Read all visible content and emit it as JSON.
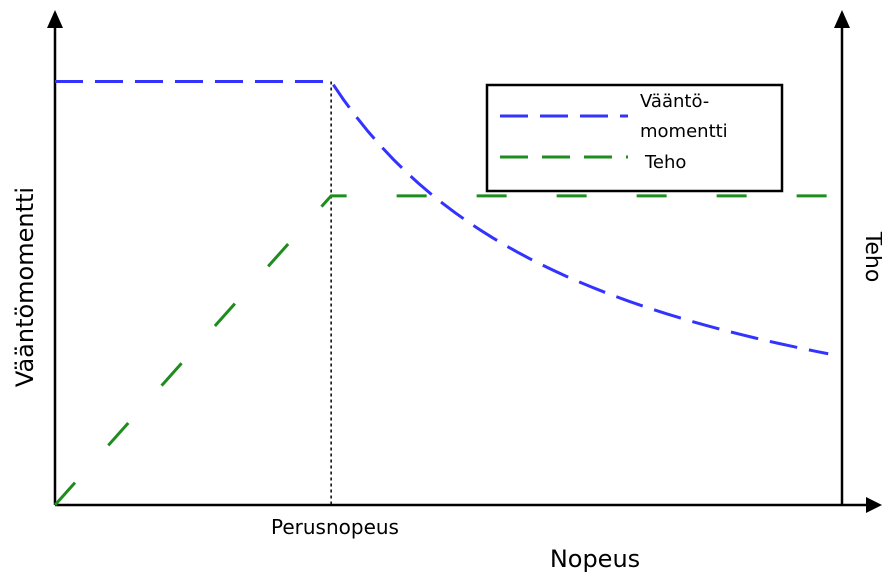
{
  "chart_data": {
    "type": "line",
    "title": "",
    "xlabel": "Nopeus",
    "ylabel": "Vääntömomentti",
    "y2label": "Teho",
    "annotations": {
      "base_speed_label": "Perusnopeus"
    },
    "legend": {
      "position": "top-right",
      "entries": [
        "Vääntö-\nmomentti",
        "Teho"
      ]
    },
    "grid": false,
    "series": [
      {
        "name": "Vääntö-\nmomentti",
        "color": "#3333ff",
        "style": "dashed",
        "x": [
          0,
          1.0,
          1.2,
          1.4,
          1.6,
          1.8,
          2.0,
          2.2,
          2.4,
          2.6,
          2.8
        ],
        "y": [
          1.0,
          1.0,
          0.8333,
          0.7143,
          0.625,
          0.5556,
          0.5,
          0.4545,
          0.4167,
          0.3846,
          0.3571
        ]
      },
      {
        "name": "Teho",
        "color": "#1e8c1e",
        "style": "dashed",
        "x": [
          0,
          1.0,
          2.8
        ],
        "y": [
          0,
          0.73,
          0.73
        ]
      }
    ],
    "xlim": [
      0,
      2.85
    ],
    "ylim": [
      0,
      1.15
    ],
    "base_speed": 1.0
  }
}
